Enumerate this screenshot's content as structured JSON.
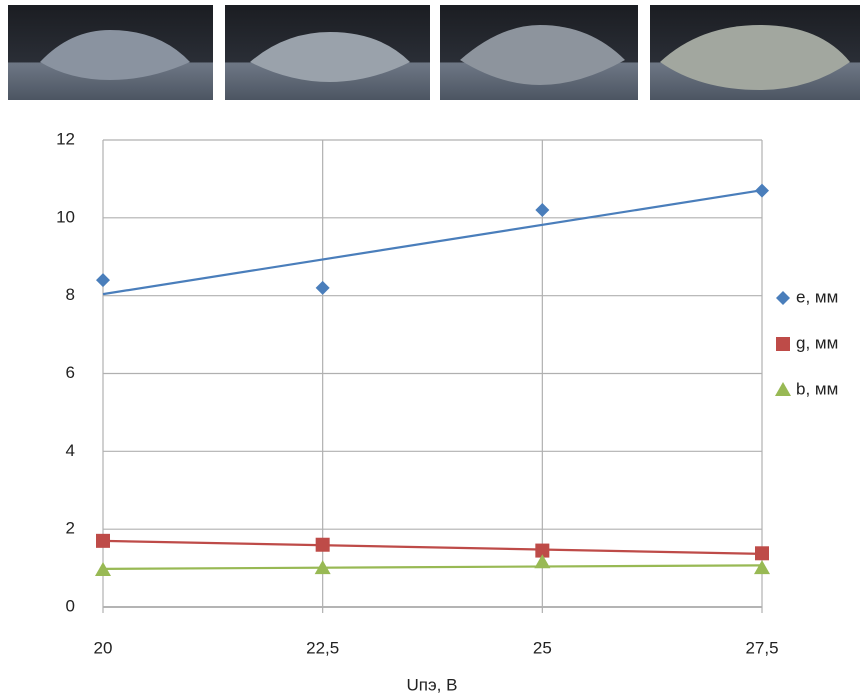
{
  "chart_data": {
    "type": "scatter",
    "x_label": "Uпэ, В",
    "x": [
      20,
      22.5,
      25,
      27.5
    ],
    "series": [
      {
        "name": "e, мм",
        "color": "#4a7ebb",
        "marker": "diamond",
        "values": [
          8.4,
          8.2,
          10.2,
          10.7
        ]
      },
      {
        "name": "g, мм",
        "color": "#be4b48",
        "marker": "square",
        "values": [
          1.7,
          1.6,
          1.45,
          1.38
        ]
      },
      {
        "name": "b, мм",
        "color": "#98b954",
        "marker": "triangle",
        "values": [
          0.95,
          1.0,
          1.15,
          1.0
        ]
      }
    ],
    "xlim": [
      20,
      27.5
    ],
    "xticks": [
      20,
      {
        "value": 22.5,
        "label": "22,5"
      },
      25,
      {
        "value": 27.5,
        "label": "27,5"
      }
    ],
    "ylim": [
      0,
      12
    ],
    "yticks": [
      0,
      2,
      4,
      6,
      8,
      10,
      12
    ],
    "grid": true,
    "trendline": "linear",
    "legend": "right"
  }
}
